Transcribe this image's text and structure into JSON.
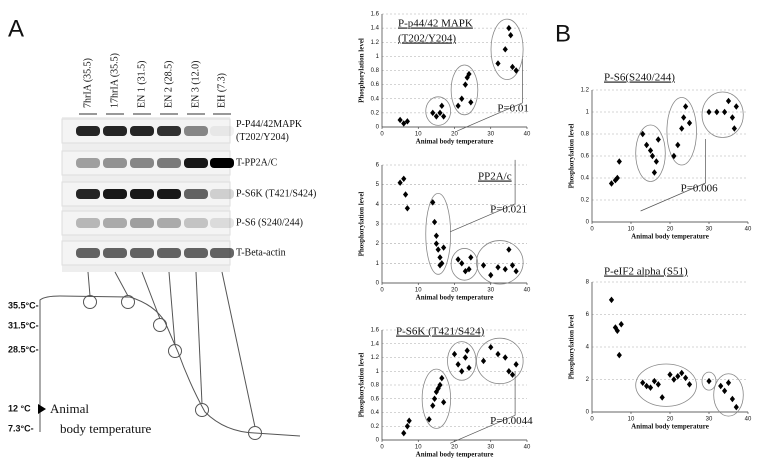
{
  "panel_labels": [
    "A",
    "B"
  ],
  "blot": {
    "lanes": [
      "7hrIA (35.5)",
      "17hrIA (35.5)",
      "EN 1 (31.5)",
      "EN 2 (28.5)",
      "EN 3 (12.0)",
      "EH (7.3)"
    ],
    "rows": [
      [
        "P-P44/42MAPK",
        "(T202/Y204)"
      ],
      [
        "T-PP2A/C"
      ],
      [
        "P-S6K (T421/S424)"
      ],
      [
        "P-S6 (S240/244)"
      ],
      [
        "T-Beta-actin"
      ]
    ]
  },
  "temperature_diagram": {
    "labels": [
      "35.5°C-",
      "31.5°C-",
      "28.5°C-",
      "12 °C",
      "7.3°C-"
    ],
    "caption": [
      "Animal",
      "body temperature"
    ]
  },
  "chart_data": [
    {
      "type": "scatter",
      "title": [
        "P-p44/42 MAPK",
        "(T202/Y204)"
      ],
      "xlabel": "Animal body temperature",
      "ylabel": "Phosphorylation  level",
      "x": [
        5,
        6,
        7,
        14,
        15,
        16,
        16.5,
        17,
        21,
        22,
        23,
        23.5,
        24,
        24.5,
        32,
        34,
        35,
        35.5,
        36,
        37
      ],
      "y": [
        0.1,
        0.05,
        0.08,
        0.2,
        0.15,
        0.2,
        0.3,
        0.15,
        0.3,
        0.4,
        0.6,
        0.7,
        0.75,
        0.35,
        0.9,
        1.1,
        1.4,
        1.3,
        0.85,
        0.8
      ],
      "xlim": [
        0,
        40
      ],
      "xticks": [
        0,
        10,
        20,
        30,
        40
      ],
      "ylim": [
        0,
        1.6
      ],
      "yticks": [
        0,
        0.2,
        0.4,
        0.6,
        0.8,
        1,
        1.2,
        1.4,
        1.6
      ],
      "annotation": "P=0.01",
      "grid": true,
      "color": "#000000"
    },
    {
      "type": "scatter",
      "title": [
        "PP2A/c"
      ],
      "xlabel": "Animal body temperature",
      "ylabel": "Phosphorylation  level",
      "x": [
        5,
        6,
        6.5,
        7,
        14,
        14.5,
        15,
        15,
        15.5,
        16,
        16,
        16.5,
        17,
        21,
        22,
        23,
        24,
        24.5,
        28,
        30,
        32,
        34,
        35,
        36,
        37
      ],
      "y": [
        5.1,
        5.3,
        4.5,
        3.8,
        4.1,
        3.1,
        2.4,
        2.0,
        1.7,
        1.3,
        0.9,
        1.0,
        1.8,
        1.2,
        1.0,
        0.6,
        0.7,
        1.3,
        0.9,
        0.4,
        0.8,
        0.7,
        1.7,
        0.9,
        0.6
      ],
      "xlim": [
        0,
        40
      ],
      "xticks": [
        0,
        10,
        20,
        30,
        40
      ],
      "ylim": [
        0,
        6
      ],
      "yticks": [
        0,
        1,
        2,
        3,
        4,
        5,
        6
      ],
      "annotation": "P=0.021",
      "grid": true,
      "color": "#000000"
    },
    {
      "type": "scatter",
      "title": [
        "P-S6K (T421/S424)"
      ],
      "xlabel": "Animal body temperature",
      "ylabel": "Phosphorylation  level",
      "x": [
        6,
        7,
        7.5,
        13,
        14,
        14.5,
        15,
        15.5,
        16,
        16.5,
        17,
        20,
        21,
        22,
        23,
        23.5,
        24,
        28,
        30,
        32,
        34,
        35,
        36,
        37
      ],
      "y": [
        0.1,
        0.2,
        0.28,
        0.3,
        0.5,
        0.6,
        0.7,
        0.75,
        0.8,
        0.9,
        0.55,
        1.25,
        1.1,
        1.0,
        1.2,
        1.3,
        1.05,
        1.15,
        1.35,
        1.25,
        1.2,
        1.0,
        0.95,
        1.1
      ],
      "xlim": [
        0,
        40
      ],
      "xticks": [
        0,
        10,
        20,
        30,
        40
      ],
      "ylim": [
        0,
        1.6
      ],
      "yticks": [
        0,
        0.2,
        0.4,
        0.6,
        0.8,
        1,
        1.2,
        1.4,
        1.6
      ],
      "annotation": "P=0.0044",
      "grid": true,
      "color": "#000000"
    },
    {
      "type": "scatter",
      "title": [
        "P-S6(S240/244)"
      ],
      "xlabel": "Animal body temperature",
      "ylabel": "Phosphorylation  level",
      "x": [
        5,
        6,
        6.5,
        7,
        13,
        14,
        15,
        15.5,
        16,
        16.5,
        17,
        21,
        22,
        23,
        23.5,
        24,
        25,
        30,
        32,
        34,
        35,
        36,
        36.5,
        37
      ],
      "y": [
        0.35,
        0.38,
        0.4,
        0.55,
        0.8,
        0.7,
        0.65,
        0.6,
        0.45,
        0.55,
        0.75,
        0.6,
        0.7,
        0.85,
        0.95,
        1.05,
        0.9,
        1.0,
        1.0,
        1.0,
        1.1,
        0.95,
        0.85,
        1.05
      ],
      "xlim": [
        0,
        40
      ],
      "xticks": [
        0,
        10,
        20,
        30,
        40
      ],
      "ylim": [
        0,
        1.2
      ],
      "yticks": [
        0,
        0.2,
        0.4,
        0.6,
        0.8,
        1,
        1.2
      ],
      "annotation": "P=0.006",
      "grid": true,
      "color": "#000000"
    },
    {
      "type": "scatter",
      "title": [
        "P-eIF2 alpha (S51)"
      ],
      "xlabel": "Animal body temperature",
      "ylabel": "Phosphorylation  level",
      "x": [
        5,
        6,
        6.5,
        7,
        7.5,
        13,
        14,
        15,
        16,
        17,
        18,
        20,
        21,
        22,
        23,
        24,
        25,
        30,
        33,
        34,
        35,
        36,
        37
      ],
      "y": [
        6.9,
        5.2,
        5.0,
        3.5,
        5.4,
        1.8,
        1.6,
        1.5,
        1.9,
        1.7,
        0.9,
        2.3,
        2.0,
        2.2,
        2.4,
        2.1,
        1.7,
        1.9,
        1.6,
        1.3,
        1.8,
        0.8,
        0.3
      ],
      "xlim": [
        0,
        40
      ],
      "xticks": [
        0,
        10,
        20,
        30,
        40
      ],
      "ylim": [
        0,
        8
      ],
      "yticks": [
        0,
        2,
        4,
        6,
        8
      ],
      "grid": true,
      "color": "#000000"
    }
  ]
}
